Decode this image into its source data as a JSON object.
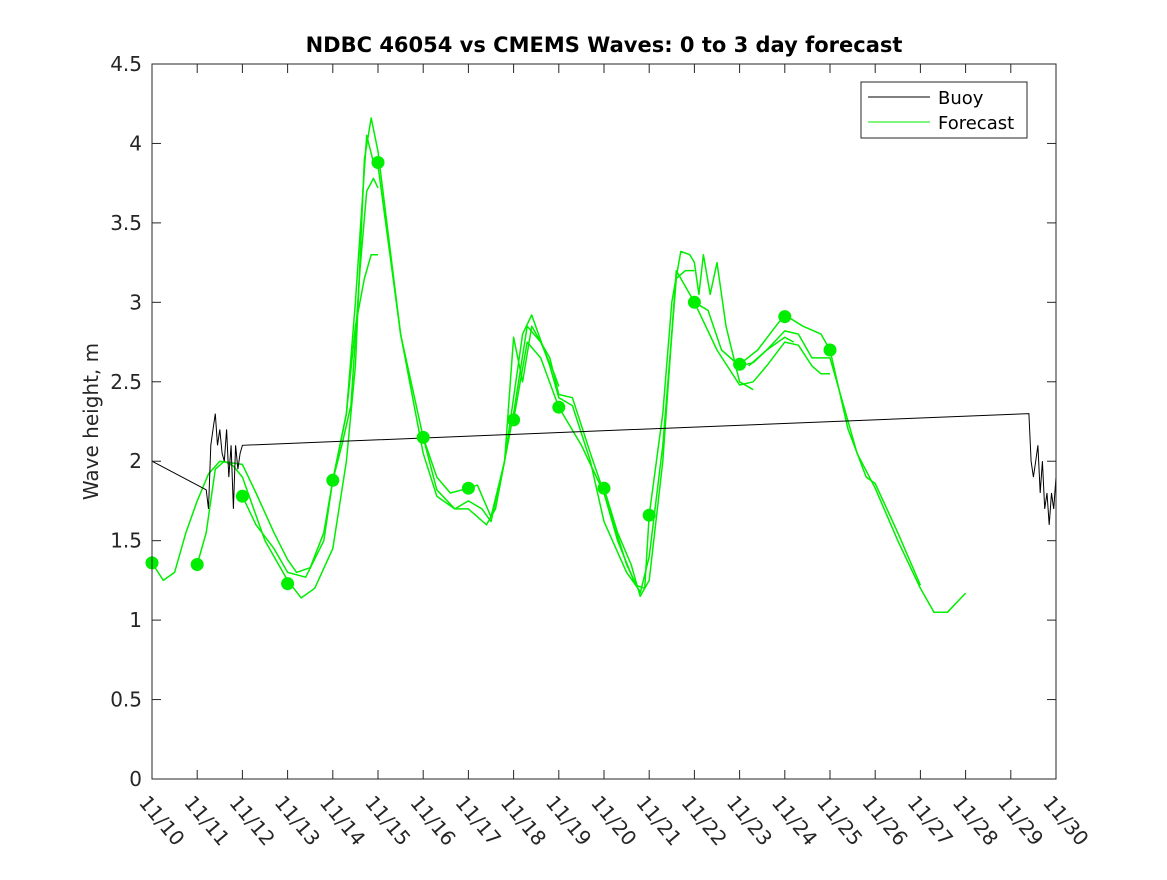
{
  "chart_data": {
    "type": "line",
    "title": "NDBC 46054 vs CMEMS Waves: 0 to 3 day forecast",
    "xlabel": "",
    "ylabel": "Wave height, m",
    "xlim": [
      "11/10",
      "11/30"
    ],
    "ylim": [
      0,
      4.5
    ],
    "x_tick_labels": [
      "11/10",
      "11/11",
      "11/12",
      "11/13",
      "11/14",
      "11/15",
      "11/16",
      "11/17",
      "11/18",
      "11/19",
      "11/20",
      "11/21",
      "11/22",
      "11/23",
      "11/24",
      "11/25",
      "11/26",
      "11/27",
      "11/28",
      "11/29",
      "11/30"
    ],
    "y_ticks": [
      0,
      0.5,
      1,
      1.5,
      2,
      2.5,
      3,
      3.5,
      4,
      4.5
    ],
    "y_tick_labels": [
      "0",
      "0.5",
      "1",
      "1.5",
      "2",
      "2.5",
      "3",
      "3.5",
      "4",
      "4.5"
    ],
    "grid": false,
    "legend_position": "top-right",
    "legend": [
      {
        "label": "Buoy",
        "color": "#000000"
      },
      {
        "label": "Forecast",
        "color": "#00ee00"
      }
    ],
    "series": [
      {
        "name": "Buoy",
        "color": "#000000",
        "points": [
          [
            0,
            2.0
          ],
          [
            1.2,
            1.82
          ],
          [
            1.25,
            1.7
          ],
          [
            1.3,
            2.1
          ],
          [
            1.35,
            2.2
          ],
          [
            1.4,
            2.3
          ],
          [
            1.45,
            2.1
          ],
          [
            1.5,
            2.2
          ],
          [
            1.55,
            2.05
          ],
          [
            1.6,
            2.0
          ],
          [
            1.65,
            2.2
          ],
          [
            1.7,
            1.9
          ],
          [
            1.75,
            2.1
          ],
          [
            1.8,
            1.7
          ],
          [
            1.85,
            2.1
          ],
          [
            1.9,
            1.95
          ],
          [
            1.95,
            2.05
          ],
          [
            2.0,
            2.1
          ],
          [
            19.4,
            2.3
          ],
          [
            19.45,
            2.0
          ],
          [
            19.5,
            1.9
          ],
          [
            19.55,
            2.0
          ],
          [
            19.6,
            2.1
          ],
          [
            19.65,
            1.8
          ],
          [
            19.7,
            2.0
          ],
          [
            19.75,
            1.7
          ],
          [
            19.8,
            1.8
          ],
          [
            19.85,
            1.6
          ],
          [
            19.9,
            1.8
          ],
          [
            19.95,
            1.7
          ],
          [
            20.0,
            1.9
          ]
        ]
      },
      {
        "name": "Forecast",
        "color": "#00ee00",
        "runs": [
          [
            [
              0,
              1.36
            ],
            [
              0.25,
              1.25
            ],
            [
              0.5,
              1.3
            ],
            [
              0.75,
              1.55
            ],
            [
              1,
              1.75
            ],
            [
              1.25,
              1.92
            ],
            [
              1.5,
              2.0
            ],
            [
              2,
              1.98
            ],
            [
              2.3,
              1.8
            ],
            [
              2.7,
              1.55
            ],
            [
              3,
              1.38
            ],
            [
              3.2,
              1.3
            ],
            [
              3.5,
              1.33
            ],
            [
              3.8,
              1.55
            ],
            [
              4,
              1.88
            ],
            [
              4.2,
              2.1
            ],
            [
              4.4,
              2.35
            ],
            [
              4.6,
              3.2
            ],
            [
              4.75,
              3.7
            ],
            [
              4.9,
              3.78
            ],
            [
              5,
              3.72
            ]
          ],
          [
            [
              1,
              1.35
            ],
            [
              1.2,
              1.55
            ],
            [
              1.4,
              1.95
            ],
            [
              1.6,
              2.0
            ],
            [
              1.8,
              1.97
            ],
            [
              2,
              1.9
            ],
            [
              2.5,
              1.5
            ],
            [
              3,
              1.25
            ],
            [
              3.3,
              1.14
            ],
            [
              3.6,
              1.2
            ],
            [
              4,
              1.45
            ],
            [
              4.3,
              2.0
            ],
            [
              4.5,
              2.6
            ],
            [
              4.7,
              3.9
            ],
            [
              4.85,
              4.16
            ],
            [
              5,
              3.95
            ],
            [
              5.5,
              2.8
            ],
            [
              6,
              2.15
            ],
            [
              6.3,
              1.82
            ],
            [
              6.7,
              1.7
            ],
            [
              7,
              1.7
            ],
            [
              7.2,
              1.65
            ],
            [
              7.4,
              1.6
            ],
            [
              7.6,
              1.7
            ],
            [
              8,
              2.3
            ],
            [
              8.3,
              2.85
            ],
            [
              8.6,
              2.75
            ],
            [
              8.9,
              2.55
            ],
            [
              9,
              2.47
            ]
          ],
          [
            [
              2,
              1.78
            ],
            [
              2.3,
              1.6
            ],
            [
              2.7,
              1.45
            ],
            [
              3,
              1.3
            ],
            [
              3.4,
              1.27
            ],
            [
              3.8,
              1.5
            ],
            [
              4,
              1.88
            ],
            [
              4.3,
              2.3
            ],
            [
              4.5,
              3.0
            ],
            [
              4.75,
              4.05
            ],
            [
              4.9,
              3.88
            ],
            [
              5,
              3.86
            ],
            [
              5.5,
              2.8
            ],
            [
              6,
              2.05
            ],
            [
              6.3,
              1.78
            ],
            [
              6.7,
              1.7
            ],
            [
              7,
              1.75
            ],
            [
              7.3,
              1.7
            ],
            [
              7.5,
              1.62
            ],
            [
              7.8,
              2.0
            ],
            [
              8.2,
              2.8
            ],
            [
              8.4,
              2.92
            ],
            [
              8.8,
              2.6
            ],
            [
              9,
              2.4
            ],
            [
              9.3,
              2.35
            ],
            [
              9.7,
              2.0
            ],
            [
              10,
              1.62
            ],
            [
              10.5,
              1.3
            ],
            [
              10.8,
              1.18
            ]
          ],
          [
            [
              4,
              1.88
            ],
            [
              4.3,
              2.3
            ],
            [
              4.5,
              2.85
            ],
            [
              4.7,
              3.15
            ],
            [
              4.85,
              3.3
            ],
            [
              5,
              3.3
            ]
          ],
          [
            [
              6,
              2.15
            ],
            [
              6.3,
              1.9
            ],
            [
              6.6,
              1.8
            ],
            [
              7,
              1.83
            ],
            [
              7.2,
              1.85
            ],
            [
              7.5,
              1.65
            ],
            [
              7.8,
              2.0
            ],
            [
              8,
              2.78
            ],
            [
              8.2,
              2.5
            ],
            [
              8.4,
              2.85
            ],
            [
              8.8,
              2.65
            ],
            [
              9,
              2.42
            ],
            [
              9.3,
              2.4
            ],
            [
              9.7,
              2.05
            ],
            [
              10,
              1.8
            ],
            [
              10.5,
              1.35
            ],
            [
              10.8,
              1.17
            ],
            [
              11,
              1.4
            ],
            [
              11.3,
              2.1
            ],
            [
              11.6,
              3.15
            ],
            [
              11.8,
              3.2
            ],
            [
              12,
              3.2
            ]
          ],
          [
            [
              8,
              2.26
            ],
            [
              8.3,
              2.75
            ],
            [
              8.6,
              2.65
            ],
            [
              9,
              2.34
            ],
            [
              9.5,
              2.1
            ],
            [
              10,
              1.8
            ],
            [
              10.3,
              1.5
            ],
            [
              10.7,
              1.22
            ],
            [
              10.9,
              1.2
            ],
            [
              11,
              1.66
            ],
            [
              11.3,
              2.3
            ],
            [
              11.5,
              3.0
            ],
            [
              11.7,
              3.32
            ],
            [
              11.9,
              3.3
            ],
            [
              12,
              3.25
            ],
            [
              12.1,
              3.05
            ],
            [
              12.2,
              3.3
            ],
            [
              12.35,
              3.05
            ],
            [
              12.5,
              3.25
            ],
            [
              12.7,
              2.85
            ],
            [
              13,
              2.5
            ],
            [
              13.3,
              2.45
            ]
          ],
          [
            [
              10,
              1.83
            ],
            [
              10.3,
              1.55
            ],
            [
              10.6,
              1.35
            ],
            [
              10.8,
              1.15
            ],
            [
              11,
              1.25
            ],
            [
              11.3,
              2.0
            ],
            [
              11.6,
              3.2
            ],
            [
              12,
              3.0
            ],
            [
              12.5,
              2.7
            ],
            [
              13,
              2.48
            ],
            [
              13.3,
              2.5
            ],
            [
              13.6,
              2.6
            ],
            [
              14,
              2.75
            ],
            [
              14.3,
              2.73
            ],
            [
              14.6,
              2.6
            ],
            [
              14.8,
              2.55
            ],
            [
              15,
              2.55
            ]
          ],
          [
            [
              12,
              3.0
            ],
            [
              12.3,
              2.95
            ],
            [
              12.6,
              2.7
            ],
            [
              13,
              2.6
            ],
            [
              13.3,
              2.62
            ],
            [
              13.6,
              2.7
            ],
            [
              14,
              2.82
            ],
            [
              14.3,
              2.8
            ],
            [
              14.6,
              2.65
            ],
            [
              15,
              2.65
            ],
            [
              15.3,
              2.35
            ],
            [
              15.6,
              2.05
            ],
            [
              16,
              1.83
            ],
            [
              16.5,
              1.5
            ],
            [
              17,
              1.2
            ],
            [
              17.3,
              1.05
            ],
            [
              17.6,
              1.05
            ],
            [
              18,
              1.17
            ]
          ],
          [
            [
              13,
              2.61
            ],
            [
              13.4,
              2.7
            ],
            [
              13.8,
              2.85
            ],
            [
              14,
              2.92
            ],
            [
              14.4,
              2.85
            ],
            [
              14.8,
              2.8
            ],
            [
              15,
              2.7
            ],
            [
              15.4,
              2.2
            ],
            [
              15.8,
              1.9
            ],
            [
              16,
              1.86
            ],
            [
              16.5,
              1.55
            ],
            [
              17,
              1.22
            ]
          ],
          [
            [
              13.2,
              2.6
            ],
            [
              13.6,
              2.7
            ],
            [
              14,
              2.78
            ],
            [
              14.2,
              2.75
            ]
          ]
        ],
        "markers": [
          [
            0,
            1.36
          ],
          [
            1,
            1.35
          ],
          [
            2,
            1.78
          ],
          [
            3,
            1.23
          ],
          [
            4,
            1.88
          ],
          [
            5,
            3.88
          ],
          [
            6,
            2.15
          ],
          [
            7,
            1.83
          ],
          [
            8,
            2.26
          ],
          [
            9,
            2.34
          ],
          [
            10,
            1.83
          ],
          [
            11,
            1.66
          ],
          [
            12,
            3.0
          ],
          [
            13,
            2.61
          ],
          [
            14,
            2.91
          ],
          [
            15,
            2.7
          ]
        ]
      }
    ]
  }
}
